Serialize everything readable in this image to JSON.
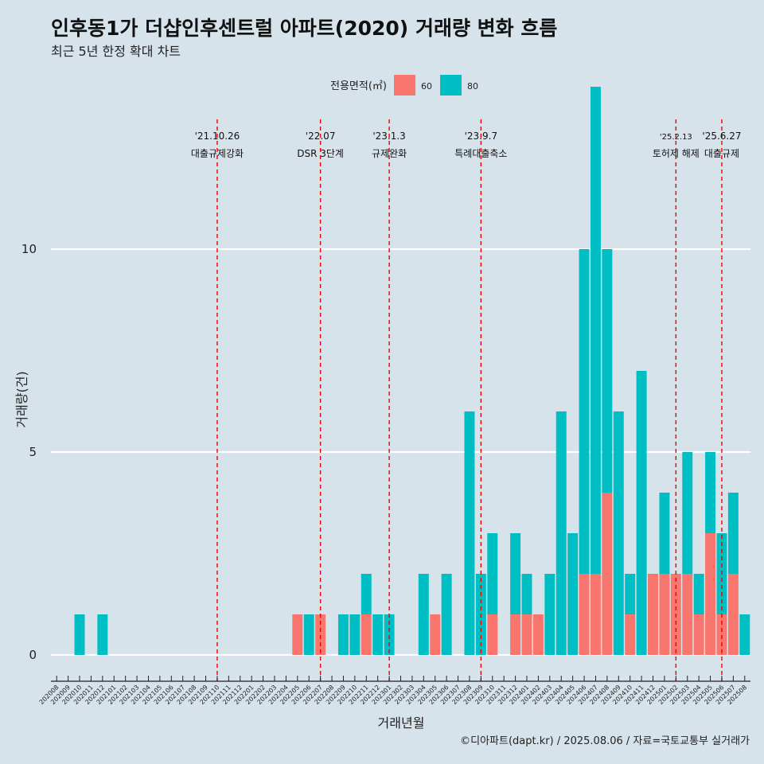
{
  "title": "인후동1가 더샵인후센트럴 아파트(2020) 거래량 변화 흐름",
  "subtitle": "최근 5년 한정 확대 차트",
  "caption": "©디아파트(dapt.kr) / 2025.08.06 / 자료=국토교통부 실거래가",
  "legend": {
    "title": "전용면적(㎡)",
    "items": [
      {
        "label": "60",
        "color": "#f8766d"
      },
      {
        "label": "80",
        "color": "#00bfc4"
      }
    ]
  },
  "chart_data": {
    "type": "bar",
    "xlabel": "거래년월",
    "ylabel": "거래량(건)",
    "ylim": [
      0,
      12
    ],
    "yticks": [
      0,
      5,
      10
    ],
    "grid": true,
    "legend_position": "top",
    "categories": [
      "202008",
      "202009",
      "202010",
      "202011",
      "202012",
      "202101",
      "202102",
      "202103",
      "202104",
      "202105",
      "202106",
      "202107",
      "202108",
      "202109",
      "202110",
      "202111",
      "202112",
      "202201",
      "202202",
      "202203",
      "202204",
      "202205",
      "202206",
      "202207",
      "202208",
      "202209",
      "202210",
      "202211",
      "202212",
      "202301",
      "202302",
      "202303",
      "202304",
      "202305",
      "202306",
      "202307",
      "202308",
      "202309",
      "202310",
      "202311",
      "202312",
      "202401",
      "202402",
      "202403",
      "202404",
      "202405",
      "202406",
      "202407",
      "202408",
      "202409",
      "202410",
      "202411",
      "202412",
      "202501",
      "202502",
      "202503",
      "202504",
      "202505",
      "202506",
      "202507",
      "202508"
    ],
    "series": [
      {
        "name": "60",
        "color": "#f8766d",
        "values": [
          0,
          0,
          0,
          0,
          0,
          0,
          0,
          0,
          0,
          0,
          0,
          0,
          0,
          0,
          0,
          0,
          0,
          0,
          0,
          0,
          0,
          1,
          0,
          1,
          0,
          0,
          0,
          1,
          0,
          0,
          0,
          0,
          0,
          1,
          0,
          0,
          0,
          0,
          1,
          0,
          1,
          1,
          1,
          0,
          0,
          0,
          2,
          2,
          4,
          0,
          1,
          0,
          2,
          2,
          2,
          2,
          1,
          3,
          1,
          2,
          0
        ]
      },
      {
        "name": "80",
        "color": "#00bfc4",
        "values": [
          0,
          0,
          1,
          0,
          1,
          0,
          0,
          0,
          0,
          0,
          0,
          0,
          0,
          0,
          0,
          0,
          0,
          0,
          0,
          0,
          0,
          0,
          1,
          0,
          0,
          1,
          1,
          1,
          1,
          1,
          0,
          0,
          2,
          0,
          2,
          0,
          6,
          2,
          2,
          0,
          2,
          1,
          0,
          2,
          6,
          3,
          8,
          12,
          6,
          6,
          1,
          7,
          0,
          2,
          0,
          3,
          1,
          2,
          2,
          2,
          1
        ]
      }
    ],
    "events": [
      {
        "date": "'21.10.26",
        "label": "대출규제강화",
        "x": "202110"
      },
      {
        "date": "'22.07",
        "label": "DSR 3단계",
        "x": "202207"
      },
      {
        "date": "'23.1.3",
        "label": "규제완화",
        "x": "202301"
      },
      {
        "date": "'23.9.7",
        "label": "특례대출축소",
        "x": "202309"
      },
      {
        "date": "'25.2.13",
        "label": "토허제 해제",
        "x": "202502"
      },
      {
        "date": "'25.6.27",
        "label": "대출규제",
        "x": "202506"
      }
    ]
  }
}
